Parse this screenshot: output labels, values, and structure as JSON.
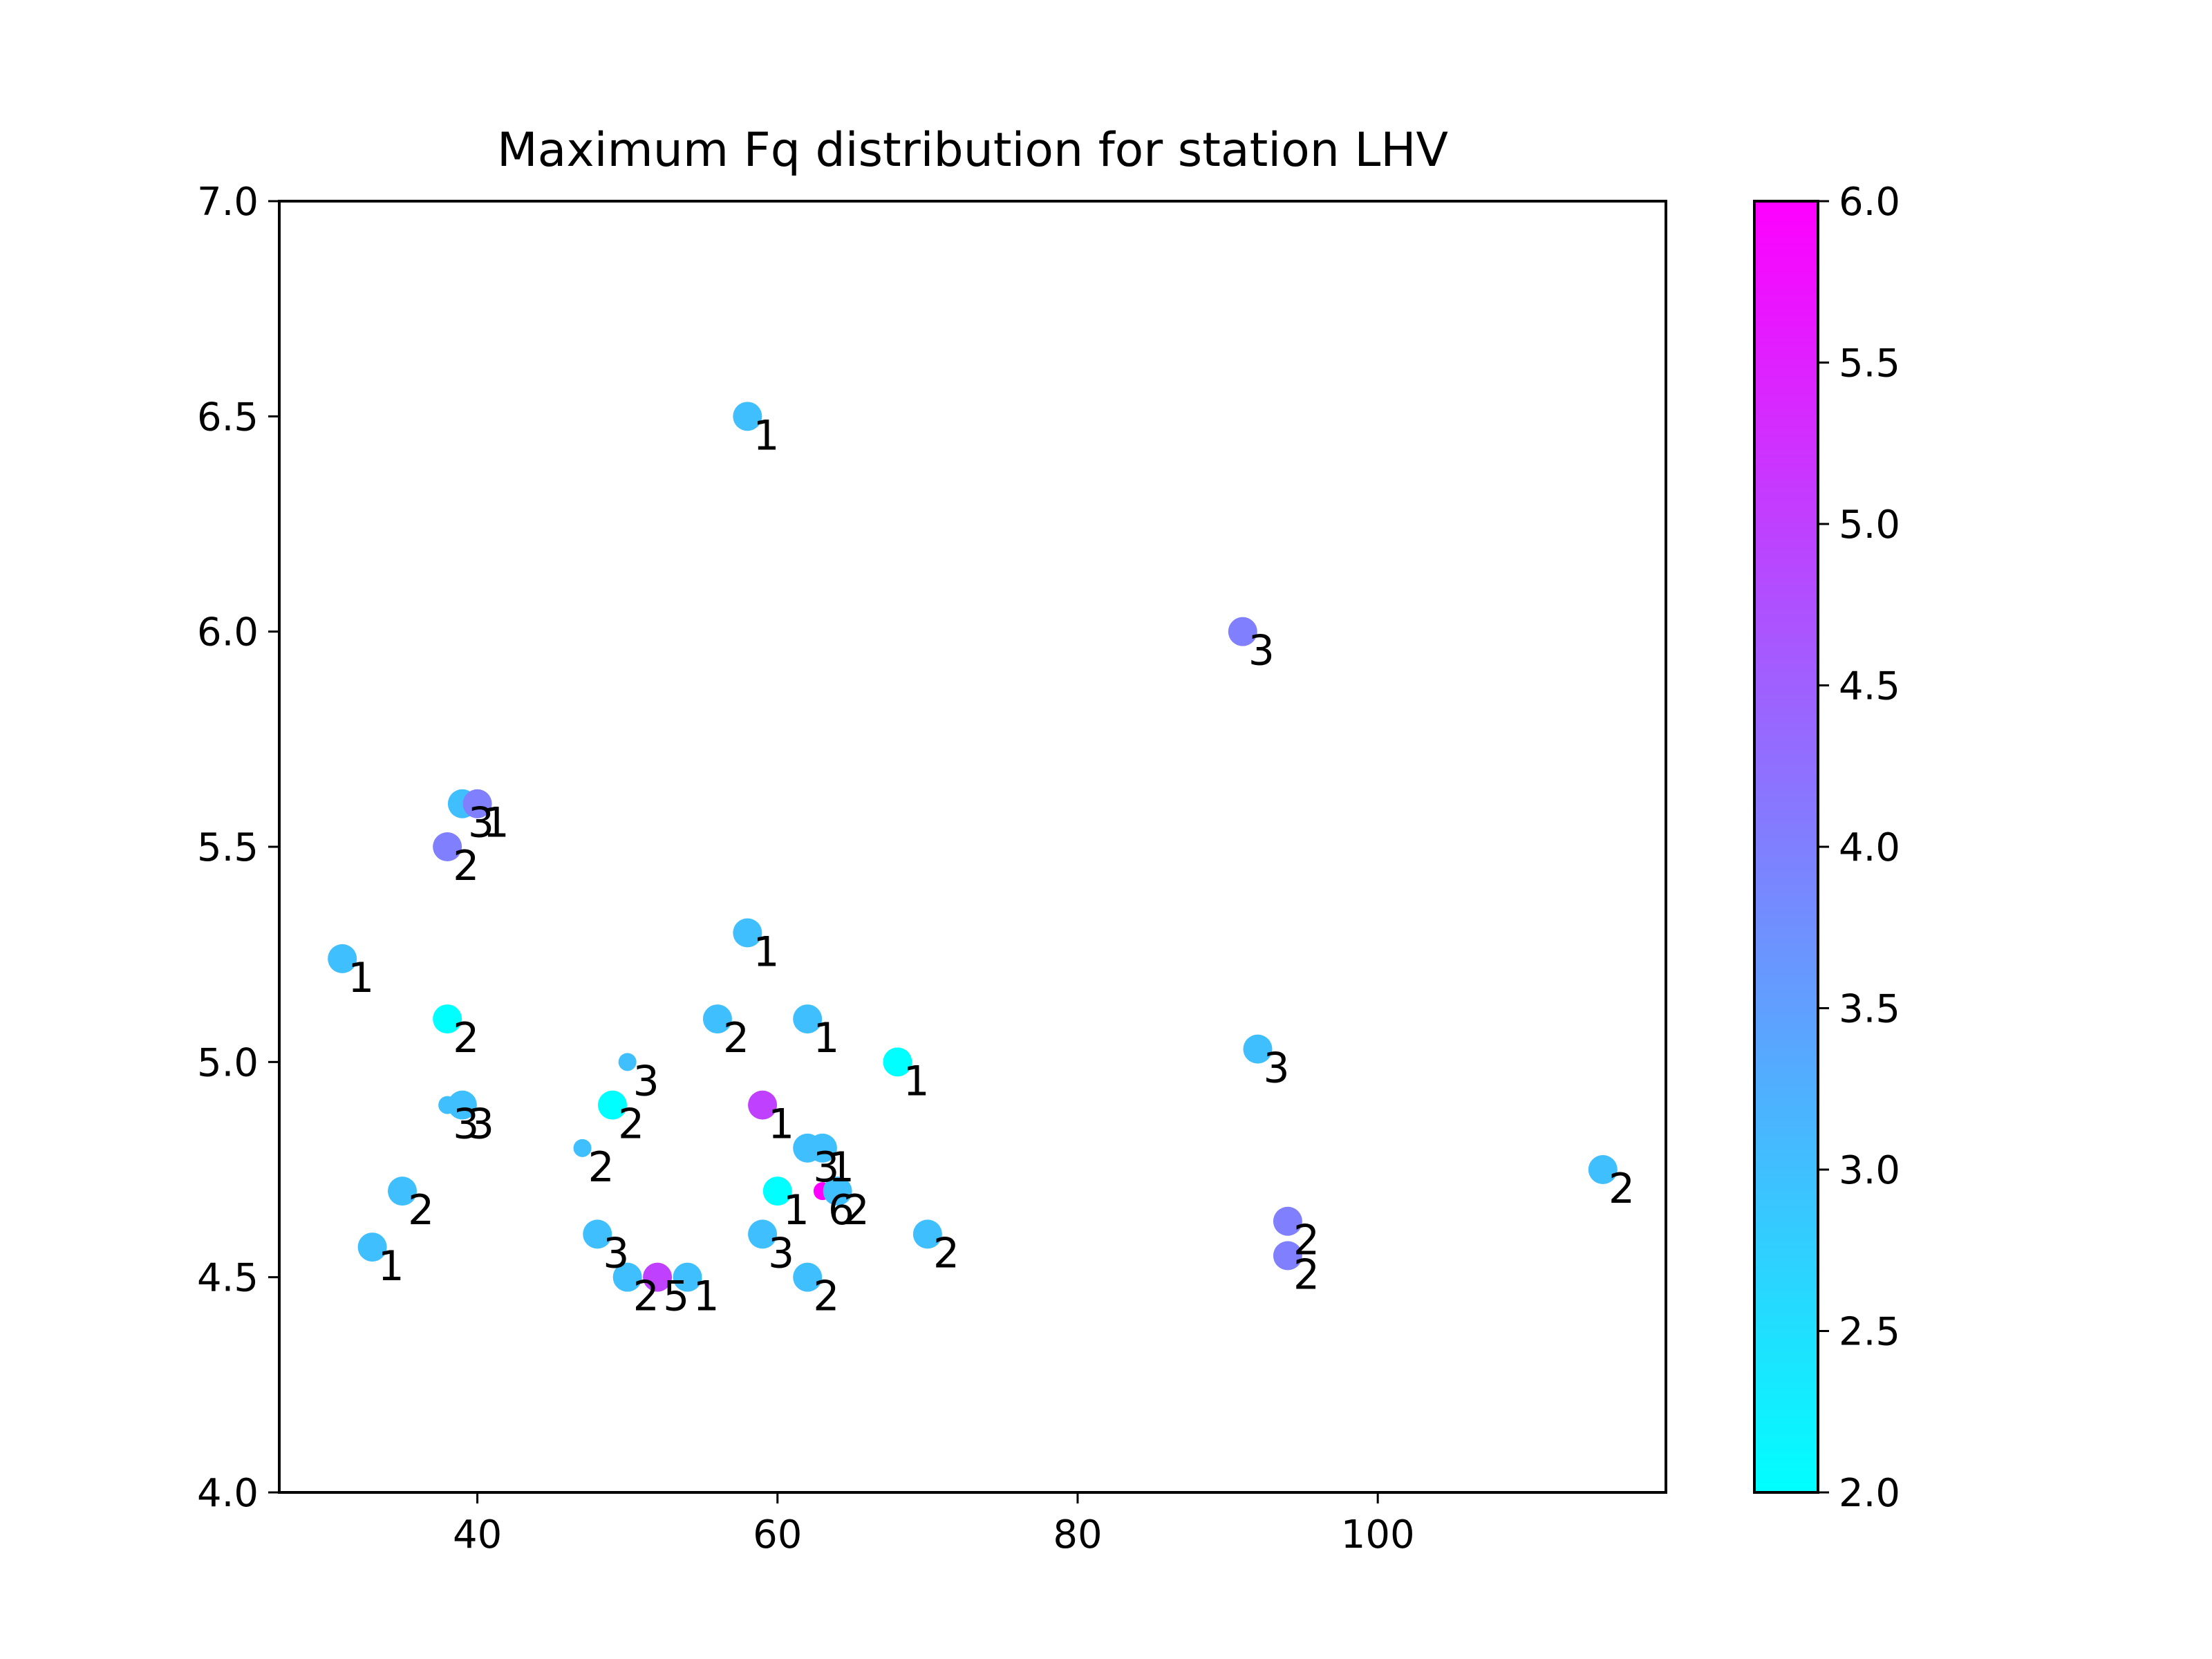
{
  "chart_data": {
    "type": "scatter",
    "title": "Maximum Fq distribution for station LHV",
    "xlabel": "",
    "ylabel": "",
    "xlim": [
      26.8,
      119.2
    ],
    "ylim": [
      4.0,
      7.0
    ],
    "x_ticks": [
      40,
      60,
      80,
      100
    ],
    "x_tick_labels": [
      "40",
      "60",
      "80",
      "100"
    ],
    "y_ticks": [
      4.0,
      4.5,
      5.0,
      5.5,
      6.0,
      6.5,
      7.0
    ],
    "y_tick_labels": [
      "4.0",
      "4.5",
      "5.0",
      "5.5",
      "6.0",
      "6.5",
      "7.0"
    ],
    "grid": false,
    "colormap": "cool",
    "colormap_colors": [
      "#00ffff",
      "#ff00ff"
    ],
    "colorbar": {
      "range": [
        2.0,
        6.0
      ],
      "ticks": [
        2.0,
        2.5,
        3.0,
        3.5,
        4.0,
        4.5,
        5.0,
        5.5,
        6.0
      ],
      "tick_labels": [
        "2.0",
        "2.5",
        "3.0",
        "3.5",
        "4.0",
        "4.5",
        "5.0",
        "5.5",
        "6.0"
      ]
    },
    "points": [
      {
        "x": 58,
        "y": 6.5,
        "c": 3,
        "label": "1",
        "size": "large"
      },
      {
        "x": 91,
        "y": 6.0,
        "c": 4,
        "label": "3",
        "size": "large"
      },
      {
        "x": 39,
        "y": 5.6,
        "c": 3,
        "label": "3",
        "size": "large"
      },
      {
        "x": 40,
        "y": 5.6,
        "c": 4,
        "label": "1",
        "size": "large"
      },
      {
        "x": 38,
        "y": 5.5,
        "c": 4,
        "label": "2",
        "size": "large"
      },
      {
        "x": 31,
        "y": 5.24,
        "c": 3,
        "label": "1",
        "size": "large"
      },
      {
        "x": 58,
        "y": 5.3,
        "c": 3,
        "label": "1",
        "size": "large"
      },
      {
        "x": 38,
        "y": 5.1,
        "c": 2,
        "label": "2",
        "size": "large"
      },
      {
        "x": 56,
        "y": 5.1,
        "c": 3,
        "label": "2",
        "size": "large"
      },
      {
        "x": 62,
        "y": 5.1,
        "c": 3,
        "label": "1",
        "size": "large"
      },
      {
        "x": 68,
        "y": 5.0,
        "c": 2,
        "label": "1",
        "size": "large"
      },
      {
        "x": 92,
        "y": 5.03,
        "c": 3,
        "label": "3",
        "size": "large"
      },
      {
        "x": 50,
        "y": 5.0,
        "c": 3,
        "label": "3",
        "size": "small"
      },
      {
        "x": 38,
        "y": 4.9,
        "c": 3,
        "label": "3",
        "size": "small"
      },
      {
        "x": 39,
        "y": 4.9,
        "c": 3,
        "label": "3",
        "size": "large"
      },
      {
        "x": 49,
        "y": 4.9,
        "c": 2,
        "label": "2",
        "size": "large"
      },
      {
        "x": 59,
        "y": 4.9,
        "c": 5,
        "label": "1",
        "size": "large"
      },
      {
        "x": 47,
        "y": 4.8,
        "c": 3,
        "label": "2",
        "size": "small"
      },
      {
        "x": 62,
        "y": 4.8,
        "c": 3,
        "label": "3",
        "size": "large"
      },
      {
        "x": 63,
        "y": 4.8,
        "c": 3,
        "label": "1",
        "size": "large"
      },
      {
        "x": 35,
        "y": 4.7,
        "c": 3,
        "label": "2",
        "size": "large"
      },
      {
        "x": 60,
        "y": 4.7,
        "c": 2,
        "label": "1",
        "size": "large"
      },
      {
        "x": 63,
        "y": 4.7,
        "c": 6,
        "label": "6",
        "size": "small"
      },
      {
        "x": 64,
        "y": 4.7,
        "c": 3,
        "label": "2",
        "size": "large"
      },
      {
        "x": 115,
        "y": 4.75,
        "c": 3,
        "label": "2",
        "size": "large"
      },
      {
        "x": 33,
        "y": 4.57,
        "c": 3,
        "label": "1",
        "size": "large"
      },
      {
        "x": 48,
        "y": 4.6,
        "c": 3,
        "label": "3",
        "size": "large"
      },
      {
        "x": 59,
        "y": 4.6,
        "c": 3,
        "label": "3",
        "size": "large"
      },
      {
        "x": 70,
        "y": 4.6,
        "c": 3,
        "label": "2",
        "size": "large"
      },
      {
        "x": 94,
        "y": 4.63,
        "c": 4,
        "label": "2",
        "size": "large"
      },
      {
        "x": 94,
        "y": 4.55,
        "c": 4,
        "label": "2",
        "size": "large"
      },
      {
        "x": 50,
        "y": 4.5,
        "c": 3,
        "label": "2",
        "size": "large"
      },
      {
        "x": 52,
        "y": 4.5,
        "c": 5,
        "label": "5",
        "size": "large"
      },
      {
        "x": 54,
        "y": 4.5,
        "c": 3,
        "label": "1",
        "size": "large"
      },
      {
        "x": 62,
        "y": 4.5,
        "c": 3,
        "label": "2",
        "size": "large"
      }
    ]
  }
}
